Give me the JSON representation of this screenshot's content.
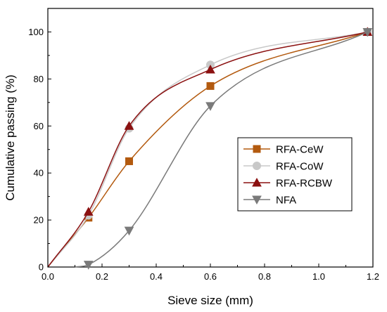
{
  "chart_data": {
    "type": "line",
    "xlabel": "Sieve size (mm)",
    "ylabel": "Cumulative passing (%)",
    "xlim": [
      0.0,
      1.2
    ],
    "ylim": [
      0,
      110
    ],
    "x_ticks": [
      "0.0",
      "0.2",
      "0.4",
      "0.6",
      "0.8",
      "1.0",
      "1.2"
    ],
    "y_ticks": [
      "0",
      "20",
      "40",
      "60",
      "80",
      "100"
    ],
    "grid": false,
    "legend_position": "right",
    "series": [
      {
        "name": "RFA-CeW",
        "color": "#b35a0f",
        "marker": "square",
        "x": [
          0,
          0.15,
          0.3,
          0.6,
          1.18
        ],
        "y": [
          0,
          21,
          45,
          77,
          100
        ]
      },
      {
        "name": "RFA-CoW",
        "color": "#c8c8c8",
        "marker": "circle",
        "x": [
          0,
          0.15,
          0.3,
          0.6,
          1.18
        ],
        "y": [
          0,
          22,
          59,
          86,
          100
        ]
      },
      {
        "name": "RFA-RCBW",
        "color": "#8b1111",
        "marker": "triangle-up",
        "x": [
          0,
          0.15,
          0.3,
          0.6,
          1.18
        ],
        "y": [
          0,
          23.5,
          60,
          84,
          100
        ]
      },
      {
        "name": "NFA",
        "color": "#7a7a7a",
        "marker": "triangle-down",
        "x": [
          0.1,
          0.15,
          0.3,
          0.6,
          1.18
        ],
        "y": [
          0,
          1,
          15.5,
          68.5,
          100
        ]
      }
    ]
  }
}
